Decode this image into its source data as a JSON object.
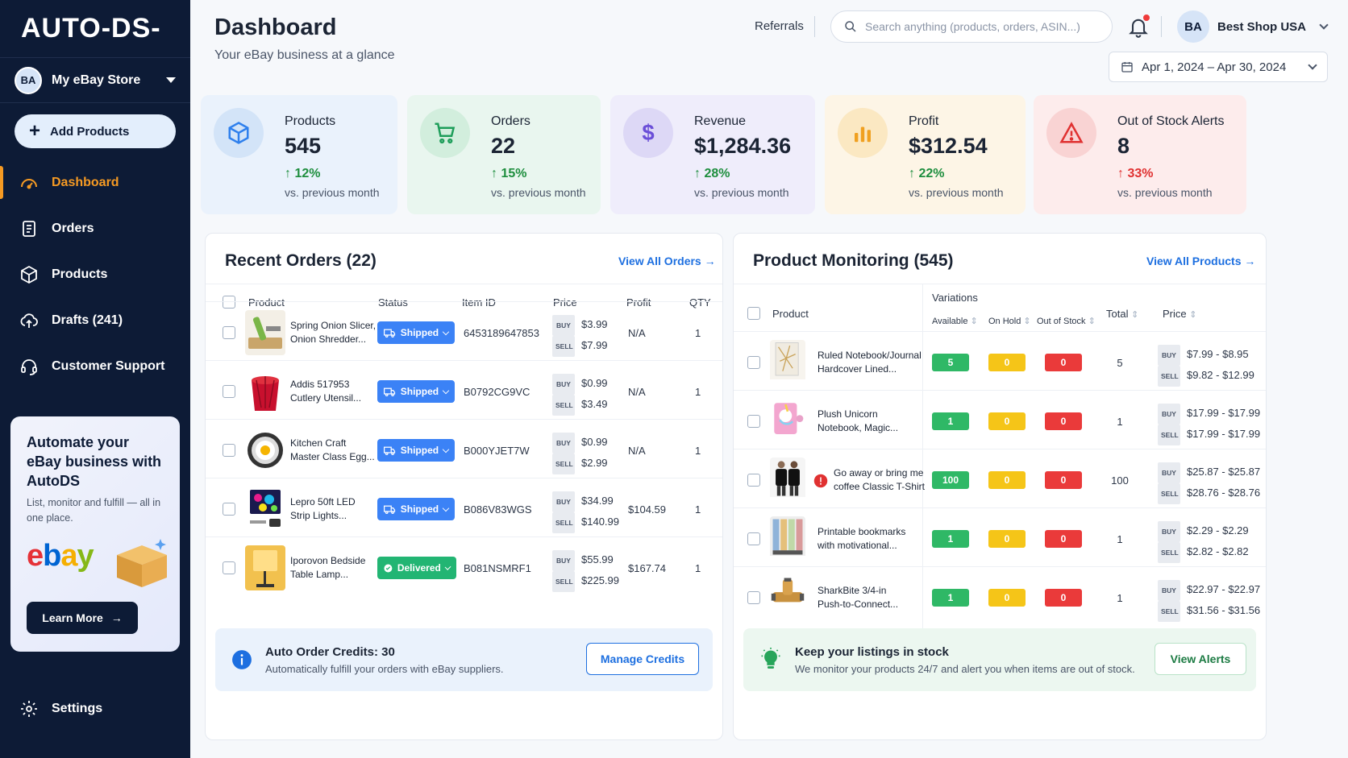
{
  "app": {
    "logo": "AUTO-DS-"
  },
  "sidebar": {
    "store_avatar": "BA",
    "store_name": "My eBay Store",
    "add_products": "Add Products",
    "items": [
      {
        "label": "Dashboard",
        "icon": "dashboard-gauge-icon",
        "active": true
      },
      {
        "label": "Orders",
        "icon": "orders-clipboard-icon"
      },
      {
        "label": "Products",
        "icon": "products-box-icon"
      },
      {
        "label": "Drafts (241)",
        "icon": "drafts-cloud-upload-icon"
      },
      {
        "label": "Customer Support",
        "icon": "headset-icon"
      }
    ],
    "promo": {
      "title": "Automate your eBay business with AutoDS",
      "text": "List, monitor and fulfill — all in one place.",
      "ebay_logo": "ebay",
      "button": "Learn More"
    },
    "settings": "Settings"
  },
  "header": {
    "title": "Dashboard",
    "subtitle": "Your eBay business at a glance",
    "referrals": "Referrals",
    "search_placeholder": "Search anything (products, orders, ASIN...)",
    "user_avatar": "BA",
    "user_name": "Best Shop USA",
    "date_range": "Apr 1, 2024 – Apr 30, 2024"
  },
  "stats": [
    {
      "label": "Products",
      "value": "545",
      "change": "12%",
      "vs": "vs. previous month",
      "icon": "cube-icon",
      "color": "#2f80ed",
      "bg": "#eaf2fc",
      "circle": "#d3e4f8",
      "changeColor": "#1e8e3e"
    },
    {
      "label": "Orders",
      "value": "22",
      "change": "15%",
      "vs": "vs. previous month",
      "icon": "cart-icon",
      "color": "#1e9e5a",
      "bg": "#e9f6ef",
      "circle": "#d2eedd",
      "changeColor": "#1e8e3e"
    },
    {
      "label": "Revenue",
      "value": "$1,284.36",
      "change": "28%",
      "vs": "vs. previous month",
      "icon": "dollar-icon",
      "color": "#6b4fd8",
      "bg": "#efedfb",
      "circle": "#ddd8f6",
      "changeColor": "#1e8e3e"
    },
    {
      "label": "Profit",
      "value": "$312.54",
      "change": "22%",
      "vs": "vs. previous month",
      "icon": "bar-chart-icon",
      "color": "#f0a020",
      "bg": "#fdf5e6",
      "circle": "#fbe8c2",
      "changeColor": "#1e8e3e"
    },
    {
      "label": "Out of Stock Alerts",
      "value": "8",
      "change": "33%",
      "vs": "vs. previous month",
      "icon": "warning-triangle-icon",
      "color": "#e03131",
      "bg": "#fdecec",
      "circle": "#f9d3d3",
      "changeColor": "#e03131"
    }
  ],
  "orders": {
    "title": "Recent Orders (22)",
    "view_all": "View All Orders",
    "columns": [
      "Product",
      "Status",
      "Item ID",
      "Price",
      "Profit",
      "QTY"
    ],
    "buy_tag": "BUY",
    "sell_tag": "SELL",
    "rows": [
      {
        "name1": "Spring Onion Slicer,",
        "name2": "Onion Shredder...",
        "status": "Shipped",
        "item_id": "6453189647853",
        "buy": "$3.99",
        "sell": "$7.99",
        "profit": "N/A",
        "qty": "1",
        "thumb": "slicer"
      },
      {
        "name1": "Addis 517953",
        "name2": "Cutlery Utensil...",
        "status": "Shipped",
        "item_id": "B0792CG9VC",
        "buy": "$0.99",
        "sell": "$3.49",
        "profit": "N/A",
        "qty": "1",
        "thumb": "cutlery"
      },
      {
        "name1": "Kitchen Craft",
        "name2": "Master Class Egg...",
        "status": "Shipped",
        "item_id": "B000YJET7W",
        "buy": "$0.99",
        "sell": "$2.99",
        "profit": "N/A",
        "qty": "1",
        "thumb": "egg"
      },
      {
        "name1": "Lepro 50ft LED",
        "name2": "Strip Lights...",
        "status": "Shipped",
        "item_id": "B086V83WGS",
        "buy": "$34.99",
        "sell": "$140.99",
        "profit": "$104.59",
        "qty": "1",
        "thumb": "led"
      },
      {
        "name1": "Iporovon Bedside",
        "name2": "Table Lamp...",
        "status": "Delivered",
        "item_id": "B081NSMRF1",
        "buy": "$55.99",
        "sell": "$225.99",
        "profit": "$167.74",
        "qty": "1",
        "thumb": "lamp"
      }
    ],
    "credits_title": "Auto Order Credits: 30",
    "credits_sub": "Automatically fulfill your orders with eBay suppliers.",
    "manage_credits": "Manage Credits",
    "shipped_color": "#3b82f6",
    "delivered_color": "#22b573"
  },
  "monitoring": {
    "title": "Product Monitoring (545)",
    "view_all": "View All Products",
    "columns": {
      "product": "Product",
      "variations": "Variations",
      "available": "Available",
      "on_hold": "On Hold",
      "out_of_stock": "Out of Stock",
      "total": "Total",
      "price": "Price"
    },
    "rows": [
      {
        "name1": "Ruled Notebook/Journal",
        "name2": "Hardcover Lined...",
        "available": "5",
        "on_hold": "0",
        "out_of_stock": "0",
        "total": "5",
        "buy": "$7.99 - $8.95",
        "sell": "$9.82 - $12.99",
        "thumb": "notebook",
        "alert": false
      },
      {
        "name1": "Plush Unicorn",
        "name2": "Notebook, Magic...",
        "available": "1",
        "on_hold": "0",
        "out_of_stock": "0",
        "total": "1",
        "buy": "$17.99 - $17.99",
        "sell": "$17.99 - $17.99",
        "thumb": "unicorn",
        "alert": false
      },
      {
        "name1": "Go away or bring me",
        "name2": "coffee Classic T-Shirt",
        "available": "100",
        "on_hold": "0",
        "out_of_stock": "0",
        "total": "100",
        "buy": "$25.87 - $25.87",
        "sell": "$28.76 - $28.76",
        "thumb": "tshirt",
        "alert": true
      },
      {
        "name1": "Printable bookmarks",
        "name2": "with motivational...",
        "available": "1",
        "on_hold": "0",
        "out_of_stock": "0",
        "total": "1",
        "buy": "$2.29 - $2.29",
        "sell": "$2.82 - $2.82",
        "thumb": "bookmarks",
        "alert": false
      },
      {
        "name1": "SharkBite 3/4-in",
        "name2": "Push-to-Connect...",
        "available": "1",
        "on_hold": "0",
        "out_of_stock": "0",
        "total": "1",
        "buy": "$22.97 - $22.97",
        "sell": "$31.56 - $31.56",
        "thumb": "fitting",
        "alert": false
      }
    ],
    "stock_title": "Keep your listings in stock",
    "stock_sub": "We monitor your products 24/7 and alert you when items are out of stock.",
    "view_alerts": "View Alerts",
    "available_color": "#2fb866",
    "on_hold_color": "#f5c518",
    "out_color": "#ea3a3a"
  }
}
